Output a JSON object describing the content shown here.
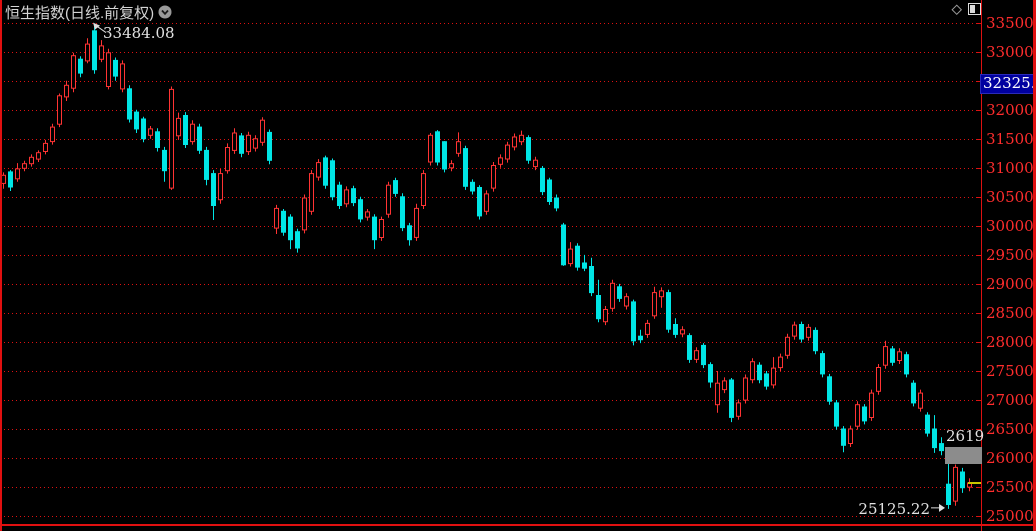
{
  "header": {
    "title": "恒生指数(日线.前复权)"
  },
  "icons": {
    "chevron": "chevron-down-circle",
    "diamond": "diamond-outline",
    "panel": "panel-layout"
  },
  "colors": {
    "background": "#000000",
    "up_candle": "#ff3333",
    "down_candle": "#00e6e6",
    "grid": "#dd1111",
    "axis_text": "#ff2d2d",
    "annotation_text": "#e2e2e2",
    "highlight_tag_bg": "#0000a0",
    "marker_box": "#8c8c8c",
    "yellow_tick": "#c8c800"
  },
  "chart_data": {
    "type": "candlestick",
    "title": "恒生指数(日线.前复权)",
    "instrument": "恒生指数",
    "period": "日线",
    "adjustment": "前复权",
    "legend_position": "none",
    "grid": "horizontal-dotted",
    "y_axis": {
      "side": "right",
      "visible_min": 24744,
      "visible_max": 33890,
      "tick_step": 500,
      "tick_labels": [
        "33500",
        "33000",
        "32500",
        "32000",
        "31500",
        "31000",
        "30500",
        "30000",
        "29500",
        "29000",
        "28500",
        "28000",
        "27500",
        "27000",
        "26500",
        "26000",
        "25500",
        "25000"
      ]
    },
    "x_axis": {
      "labels_visible": false,
      "candle_count": 139
    },
    "annotations": {
      "peak_label": {
        "text": "33484.08",
        "price": 33484.08,
        "candle_index": 13
      },
      "low_label": {
        "text": "25125.22",
        "price": 25125.22,
        "candle_index": 135
      },
      "count_label": {
        "text": "2619"
      },
      "current_price_tag": {
        "text": "32325."
      },
      "gray_marker_box": {
        "price_top": 26190,
        "price_bottom": 25890
      },
      "yellow_tick_price": 25570
    },
    "candles": [
      [
        30730,
        30920,
        30640,
        30870
      ],
      [
        30930,
        30960,
        30600,
        30670
      ],
      [
        30810,
        31080,
        30760,
        30980
      ],
      [
        30990,
        31120,
        30940,
        31070
      ],
      [
        31070,
        31230,
        31020,
        31180
      ],
      [
        31150,
        31300,
        31100,
        31260
      ],
      [
        31280,
        31480,
        31230,
        31420
      ],
      [
        31450,
        31760,
        31400,
        31700
      ],
      [
        31750,
        32280,
        31700,
        32240
      ],
      [
        32220,
        32500,
        32150,
        32420
      ],
      [
        32370,
        32980,
        32300,
        32930
      ],
      [
        32870,
        32920,
        32560,
        32630
      ],
      [
        32840,
        33230,
        32800,
        33130
      ],
      [
        33360,
        33484.08,
        32620,
        32690
      ],
      [
        32870,
        33200,
        32820,
        33100
      ],
      [
        32400,
        33050,
        32350,
        32980
      ],
      [
        32850,
        32900,
        32500,
        32580
      ],
      [
        32360,
        32850,
        32300,
        32790
      ],
      [
        32360,
        32420,
        31780,
        31840
      ],
      [
        31960,
        32000,
        31600,
        31670
      ],
      [
        31840,
        31880,
        31440,
        31500
      ],
      [
        31560,
        31720,
        31500,
        31670
      ],
      [
        31620,
        31680,
        31280,
        31350
      ],
      [
        31300,
        31360,
        30760,
        30950
      ],
      [
        30650,
        32400,
        30620,
        32350
      ],
      [
        31550,
        31950,
        31480,
        31850
      ],
      [
        31900,
        31960,
        31340,
        31400
      ],
      [
        31450,
        31820,
        31400,
        31750
      ],
      [
        31700,
        31760,
        31240,
        31300
      ],
      [
        31300,
        31360,
        30700,
        30800
      ],
      [
        30900,
        30960,
        30100,
        30350
      ],
      [
        30450,
        30980,
        30380,
        30900
      ],
      [
        30950,
        31420,
        30900,
        31350
      ],
      [
        31300,
        31680,
        31240,
        31600
      ],
      [
        31550,
        31600,
        31180,
        31250
      ],
      [
        31280,
        31620,
        31220,
        31560
      ],
      [
        31340,
        31560,
        31280,
        31500
      ],
      [
        31440,
        31870,
        31380,
        31820
      ],
      [
        31610,
        31660,
        31060,
        31130
      ],
      [
        29960,
        30360,
        29860,
        30300
      ],
      [
        30250,
        30290,
        29830,
        29890
      ],
      [
        30150,
        30200,
        29600,
        29760
      ],
      [
        29900,
        29950,
        29540,
        29620
      ],
      [
        29930,
        30540,
        29870,
        30480
      ],
      [
        30250,
        30960,
        30190,
        30900
      ],
      [
        30840,
        31150,
        30780,
        31090
      ],
      [
        31170,
        31210,
        30640,
        30700
      ],
      [
        31120,
        31160,
        30440,
        30500
      ],
      [
        30700,
        30760,
        30290,
        30350
      ],
      [
        30380,
        30680,
        30320,
        30620
      ],
      [
        30640,
        30690,
        30340,
        30400
      ],
      [
        30450,
        30500,
        30060,
        30120
      ],
      [
        30150,
        30290,
        30090,
        30240
      ],
      [
        30150,
        30200,
        29600,
        29760
      ],
      [
        29800,
        30160,
        29740,
        30110
      ],
      [
        30200,
        30760,
        30140,
        30700
      ],
      [
        30780,
        30830,
        30500,
        30560
      ],
      [
        30500,
        30560,
        29910,
        29970
      ],
      [
        30000,
        30050,
        29660,
        29760
      ],
      [
        29800,
        30380,
        29740,
        30300
      ],
      [
        30350,
        30960,
        30290,
        30900
      ],
      [
        31100,
        31600,
        31040,
        31560
      ],
      [
        31620,
        31650,
        31040,
        31100
      ],
      [
        31450,
        31460,
        30920,
        30980
      ],
      [
        31000,
        31130,
        30940,
        31070
      ],
      [
        31250,
        31610,
        31190,
        31450
      ],
      [
        31330,
        31380,
        30620,
        30680
      ],
      [
        30750,
        30800,
        30540,
        30600
      ],
      [
        30660,
        30700,
        30110,
        30170
      ],
      [
        30250,
        30610,
        30190,
        30550
      ],
      [
        30650,
        31100,
        30590,
        31040
      ],
      [
        31060,
        31230,
        31000,
        31170
      ],
      [
        31150,
        31450,
        31090,
        31390
      ],
      [
        31360,
        31590,
        31300,
        31530
      ],
      [
        31450,
        31640,
        31390,
        31560
      ],
      [
        31520,
        31560,
        31070,
        31130
      ],
      [
        31020,
        31190,
        30960,
        31130
      ],
      [
        30990,
        31030,
        30530,
        30590
      ],
      [
        30790,
        30830,
        30360,
        30420
      ],
      [
        30480,
        30540,
        30250,
        30310
      ],
      [
        30015,
        30050,
        29310,
        29330
      ],
      [
        29350,
        29720,
        29300,
        29600
      ],
      [
        29650,
        29700,
        29230,
        29290
      ],
      [
        29360,
        29500,
        29220,
        29270
      ],
      [
        29300,
        29450,
        28790,
        28850
      ],
      [
        28800,
        29070,
        28340,
        28400
      ],
      [
        28350,
        28620,
        28290,
        28560
      ],
      [
        28580,
        29070,
        28520,
        29010
      ],
      [
        28950,
        29000,
        28690,
        28750
      ],
      [
        28620,
        28840,
        28560,
        28780
      ],
      [
        28690,
        28730,
        27940,
        28020
      ],
      [
        28100,
        28210,
        27980,
        28040
      ],
      [
        28130,
        28380,
        28070,
        28320
      ],
      [
        28450,
        28950,
        28400,
        28850
      ],
      [
        28780,
        28940,
        28590,
        28880
      ],
      [
        28850,
        28900,
        28160,
        28220
      ],
      [
        28300,
        28410,
        28070,
        28130
      ],
      [
        28140,
        28270,
        28080,
        28210
      ],
      [
        28110,
        28150,
        27640,
        27700
      ],
      [
        27700,
        27910,
        27640,
        27850
      ],
      [
        27940,
        27980,
        27550,
        27610
      ],
      [
        27610,
        27650,
        27210,
        27310
      ],
      [
        26920,
        27500,
        26780,
        27290
      ],
      [
        27180,
        27390,
        27120,
        27330
      ],
      [
        27345,
        27380,
        26620,
        26700
      ],
      [
        26720,
        27010,
        26660,
        26950
      ],
      [
        27000,
        27440,
        26940,
        27380
      ],
      [
        27350,
        27720,
        27290,
        27660
      ],
      [
        27600,
        27650,
        27290,
        27350
      ],
      [
        27450,
        27500,
        27180,
        27240
      ],
      [
        27260,
        27740,
        27200,
        27550
      ],
      [
        27560,
        27800,
        27500,
        27740
      ],
      [
        27770,
        28140,
        27710,
        28080
      ],
      [
        28100,
        28350,
        28040,
        28290
      ],
      [
        28300,
        28350,
        27990,
        28050
      ],
      [
        28080,
        28310,
        28020,
        28250
      ],
      [
        28200,
        28250,
        27790,
        27850
      ],
      [
        27800,
        27850,
        27390,
        27450
      ],
      [
        27400,
        27450,
        26920,
        26980
      ],
      [
        26950,
        27000,
        26490,
        26550
      ],
      [
        26500,
        26550,
        26100,
        26220
      ],
      [
        26250,
        26560,
        26190,
        26500
      ],
      [
        26550,
        26980,
        26490,
        26920
      ],
      [
        26880,
        26930,
        26580,
        26640
      ],
      [
        26700,
        27180,
        26640,
        27120
      ],
      [
        27150,
        27620,
        27090,
        27560
      ],
      [
        27600,
        28020,
        27540,
        27920
      ],
      [
        27880,
        27930,
        27590,
        27650
      ],
      [
        27680,
        27890,
        27620,
        27830
      ],
      [
        27780,
        27830,
        27390,
        27450
      ],
      [
        27290,
        27340,
        26890,
        26950
      ],
      [
        26860,
        27180,
        26800,
        27120
      ],
      [
        26740,
        26790,
        26370,
        26430
      ],
      [
        26500,
        26740,
        26090,
        26180
      ],
      [
        26250,
        26360,
        26050,
        26130
      ],
      [
        25550,
        26150,
        25125.22,
        25200
      ],
      [
        25260,
        25890,
        25180,
        25840
      ],
      [
        25760,
        25830,
        25400,
        25490
      ],
      [
        25500,
        25650,
        25430,
        25570
      ]
    ]
  }
}
